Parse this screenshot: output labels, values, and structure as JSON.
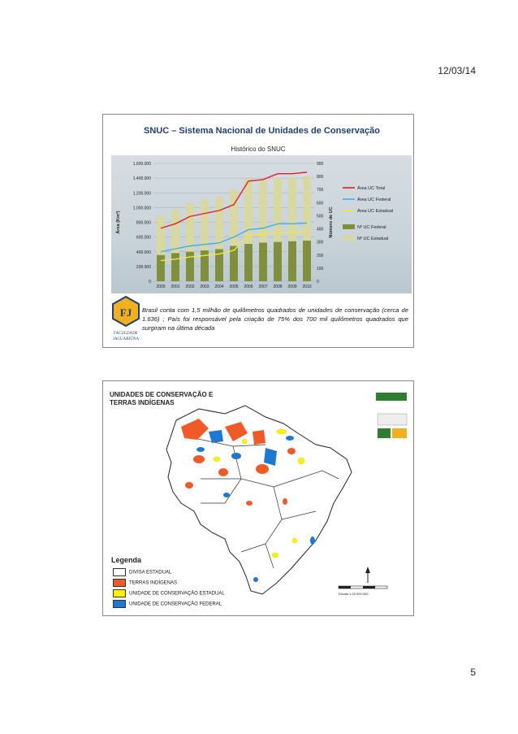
{
  "page": {
    "date": "12/03/14",
    "number": "5"
  },
  "slide1": {
    "title": "SNUC – Sistema Nacional de Unidades de Conservação",
    "body": "Brasil conta com 1,5 milhão de quilômetros quadrados de unidades de conservação (cerca de 1.636) ; País foi responsável pela criação de 75% dos 700 mil quilômetros quadrados que surgiram na última década",
    "logo_text": "FACULDADE JAGUARIÚNA"
  },
  "chart_data": {
    "type": "bar",
    "title": "Histórico do SNUC",
    "categories": [
      "2000",
      "2001",
      "2002",
      "2003",
      "2004",
      "2005",
      "2006",
      "2007",
      "2008",
      "2009",
      "2010"
    ],
    "ylabel": "Área (Km²)",
    "y2label": "Número de UC",
    "ylim": [
      0,
      1600000
    ],
    "y2lim": [
      0,
      900
    ],
    "yticks": [
      "0",
      "200.000",
      "400.000",
      "600.000",
      "800.000",
      "1.000.000",
      "1.200.000",
      "1.400.000",
      "1.600.000"
    ],
    "y2ticks": [
      "0",
      "100",
      "200",
      "300",
      "400",
      "500",
      "600",
      "700",
      "800",
      "900"
    ],
    "bars": [
      {
        "name": "Nº UC Estadual",
        "color": "#d8d8a0",
        "values": [
          500,
          545,
          595,
          620,
          645,
          700,
          780,
          770,
          790,
          790,
          800
        ]
      },
      {
        "name": "Nº UC Federal",
        "color": "#7f8f3a",
        "values": [
          200,
          215,
          225,
          235,
          245,
          270,
          285,
          295,
          300,
          305,
          310
        ]
      }
    ],
    "lines": [
      {
        "name": "Área UC Total",
        "color": "#e0202a",
        "values": [
          720000,
          780000,
          880000,
          920000,
          960000,
          1040000,
          1360000,
          1380000,
          1460000,
          1460000,
          1480000
        ]
      },
      {
        "name": "Área UC Federal",
        "color": "#40b0e0",
        "values": [
          400000,
          440000,
          480000,
          500000,
          520000,
          600000,
          700000,
          720000,
          780000,
          780000,
          790000
        ]
      },
      {
        "name": "Área UC Estadual",
        "color": "#f0e840",
        "values": [
          280000,
          300000,
          330000,
          350000,
          370000,
          420000,
          620000,
          640000,
          660000,
          660000,
          680000
        ]
      }
    ]
  },
  "slide2": {
    "title_line1": "UNIDADES DE CONSERVAÇÃO E",
    "title_line2": "TERRAS INDÍGENAS",
    "legend_title": "Legenda",
    "legend": [
      {
        "label": "DIVISA ESTADUAL",
        "color": "#ffffff"
      },
      {
        "label": "TERRAS INDÍGENAS",
        "color": "#f05a28"
      },
      {
        "label": "UNIDADE DE CONSERVAÇÃO ESTADUAL",
        "color": "#fff200"
      },
      {
        "label": "UNIDADE DE CONSERVAÇÃO FEDERAL",
        "color": "#1e78d0"
      }
    ],
    "scale_label": "Escala 1:22.000.000"
  }
}
